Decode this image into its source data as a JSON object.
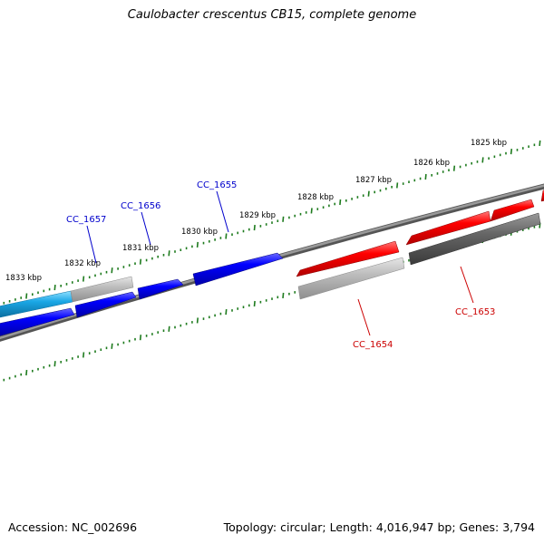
{
  "title": "Caulobacter crescentus CB15, complete genome",
  "footer": {
    "accession": "Accession: NC_002696",
    "summary": "Topology: circular; Length: 4,016,947 bp; Genes: 3,794"
  },
  "colors": {
    "backbone": "#777777",
    "tick": "#1e7b1e",
    "forward_gene": "#0000ff",
    "reverse_gene": "#ff0000",
    "gene_label_forward": "#0000cc",
    "gene_label_reverse": "#cc0000",
    "cyan_gene": "#1aa7e6",
    "gray_light": "#b8b8b8",
    "gray_dark": "#606060"
  },
  "ruler_labels": [
    "1825 kbp",
    "1826 kbp",
    "1827 kbp",
    "1828 kbp",
    "1829 kbp",
    "1830 kbp",
    "1831 kbp",
    "1832 kbp",
    "1833 kbp"
  ],
  "gene_labels": [
    {
      "name": "CC_1657",
      "strand": "forward"
    },
    {
      "name": "CC_1656",
      "strand": "forward"
    },
    {
      "name": "CC_1655",
      "strand": "forward"
    },
    {
      "name": "CC_1654",
      "strand": "reverse"
    },
    {
      "name": "CC_1653",
      "strand": "reverse"
    }
  ]
}
